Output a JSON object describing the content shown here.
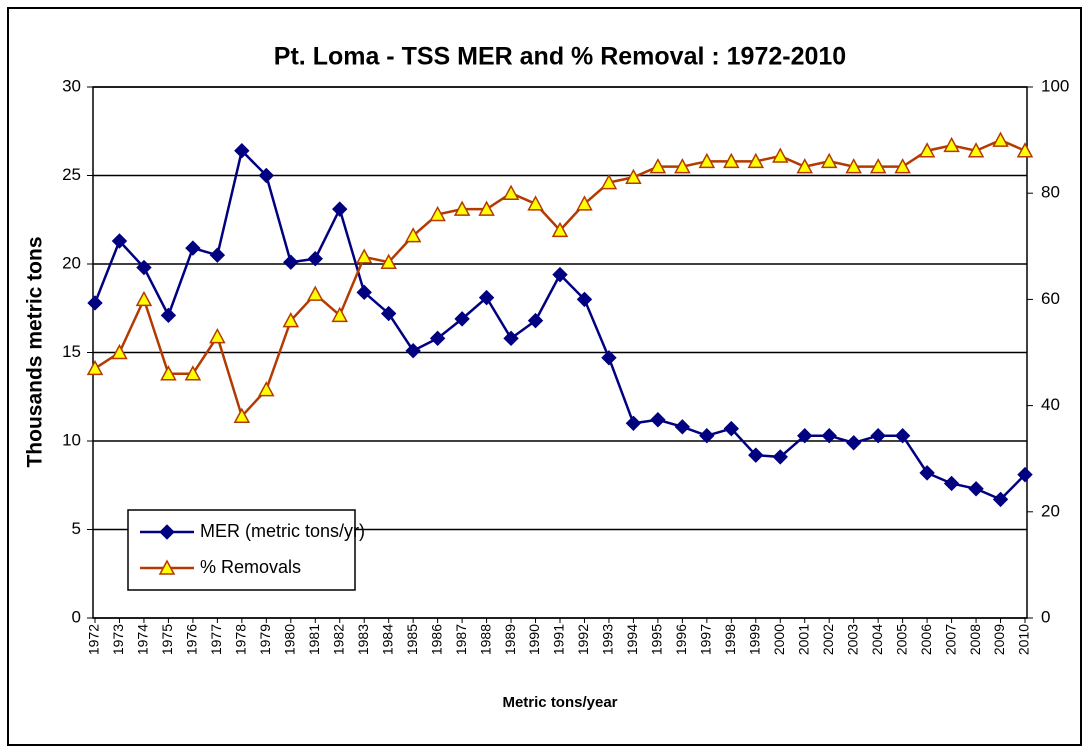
{
  "chart_data": {
    "type": "line",
    "title": "Pt. Loma - TSS MER and % Removal : 1972-2010",
    "y_label": "Thousands metric tons",
    "x_label": "Metric tons/year",
    "categories": [
      "1972",
      "1973",
      "1974",
      "1975",
      "1976",
      "1977",
      "1978",
      "1979",
      "1980",
      "1981",
      "1982",
      "1983",
      "1984",
      "1985",
      "1986",
      "1987",
      "1988",
      "1989",
      "1990",
      "1991",
      "1992",
      "1993",
      "1994",
      "1995",
      "1996",
      "1997",
      "1998",
      "1999",
      "2000",
      "2001",
      "2002",
      "2003",
      "2004",
      "2005",
      "2006",
      "2007",
      "2008",
      "2009",
      "2010"
    ],
    "series": [
      {
        "name": "MER (metric tons/yr)",
        "color": "#000080",
        "marker": "diamond",
        "marker_fill": "#000080",
        "values": [
          17.8,
          21.3,
          19.8,
          17.1,
          20.9,
          20.5,
          26.4,
          25.0,
          20.1,
          20.3,
          23.1,
          18.4,
          17.2,
          15.1,
          15.8,
          16.9,
          18.1,
          15.8,
          16.8,
          19.4,
          18.0,
          14.7,
          11.0,
          11.2,
          10.8,
          10.3,
          10.7,
          9.2,
          9.1,
          10.3,
          10.3,
          9.9,
          10.3,
          10.3,
          8.2,
          7.6,
          7.3,
          6.7,
          8.1
        ]
      },
      {
        "name": "% Removals",
        "color": "#b33a00",
        "marker": "triangle",
        "marker_fill": "#ffff00",
        "axis": "y2",
        "values": [
          47,
          50,
          60,
          46,
          46,
          53,
          38,
          43,
          56,
          61,
          57,
          68,
          67,
          72,
          76,
          77,
          77,
          80,
          78,
          73,
          78,
          82,
          83,
          85,
          85,
          86,
          86,
          86,
          87,
          85,
          86,
          85,
          85,
          85,
          88,
          89,
          88,
          90,
          88
        ]
      }
    ],
    "ylim": [
      0,
      30
    ],
    "yticks": [
      0,
      5,
      10,
      15,
      20,
      25,
      30
    ],
    "y2lim": [
      0,
      100
    ],
    "y2ticks": [
      0,
      20,
      40,
      60,
      80,
      100
    ],
    "grid": true,
    "legend": "lower left"
  }
}
